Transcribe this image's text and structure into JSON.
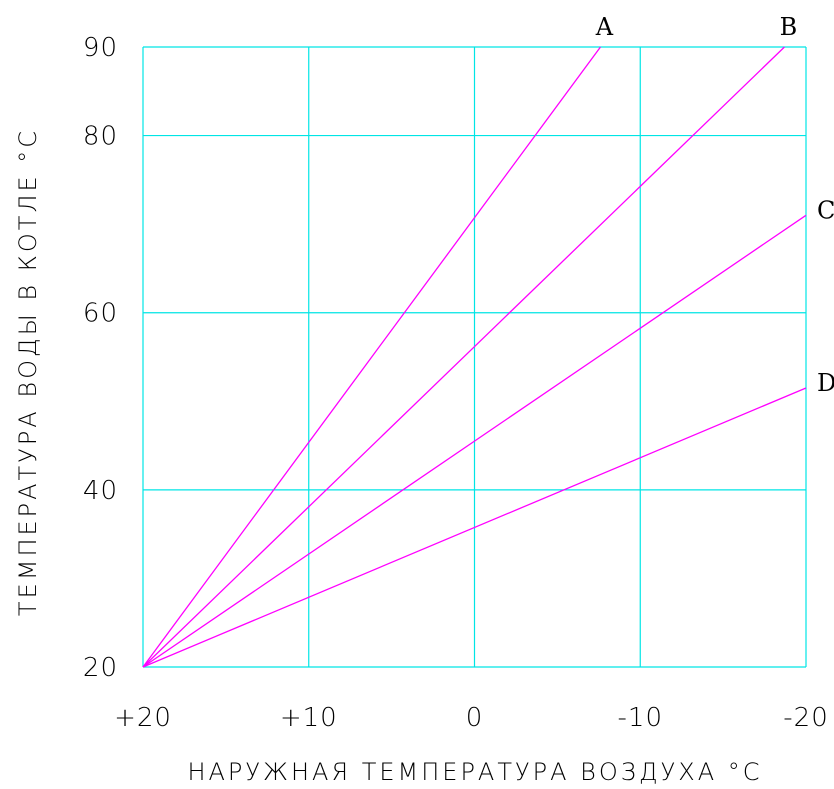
{
  "chart_data": {
    "type": "line",
    "xlabel": "НАРУЖНАЯ ТЕМПЕРАТУРА ВОЗДУХА °C",
    "ylabel": "ТЕМПЕРАТУРА ВОДЫ В КОТЛЕ °C",
    "x_tick_labels": [
      "+20",
      "+10",
      "0",
      "-10",
      "-20"
    ],
    "x_ticks": [
      20,
      10,
      0,
      -10,
      -20
    ],
    "y_ticks": [
      20,
      40,
      60,
      80,
      90
    ],
    "xlim": [
      20,
      -20
    ],
    "ylim": [
      20,
      90
    ],
    "grid": true,
    "colors": {
      "grid": "#00e5e5",
      "series": "#ff00ff"
    },
    "series": [
      {
        "name": "A",
        "x": [
          20,
          -7.6
        ],
        "y": [
          20,
          90
        ]
      },
      {
        "name": "B",
        "x": [
          20,
          -18.7
        ],
        "y": [
          20,
          90
        ]
      },
      {
        "name": "C",
        "x": [
          20,
          -20
        ],
        "y": [
          20,
          71
        ]
      },
      {
        "name": "D",
        "x": [
          20,
          -20
        ],
        "y": [
          20,
          51.5
        ]
      }
    ]
  }
}
